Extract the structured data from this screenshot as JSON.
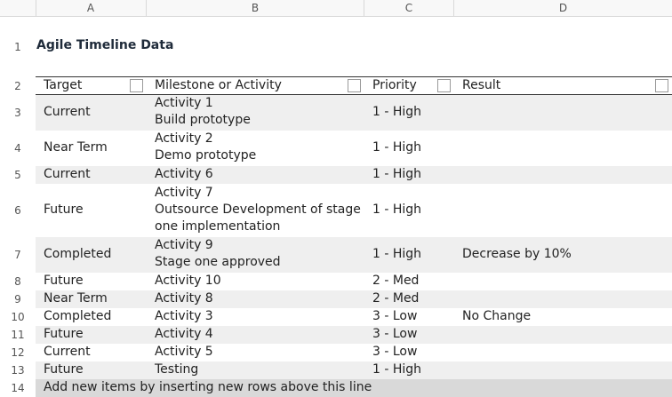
{
  "columns": [
    "A",
    "B",
    "C",
    "D"
  ],
  "title": "Agile Timeline Data",
  "headers": {
    "target": "Target",
    "milestone": "Milestone or Activity",
    "priority": "Priority",
    "result": "Result"
  },
  "rows": [
    {
      "num": "1"
    },
    {
      "num": "2"
    },
    {
      "num": "3",
      "target": "Current",
      "milestone": [
        "Activity 1",
        "Build prototype"
      ],
      "priority": "1 - High",
      "result": ""
    },
    {
      "num": "4",
      "target": "Near Term",
      "milestone": [
        "Activity 2",
        "Demo prototype"
      ],
      "priority": "1 - High",
      "result": ""
    },
    {
      "num": "5",
      "target": "Current",
      "milestone": [
        "Activity 6"
      ],
      "priority": "1 - High",
      "result": ""
    },
    {
      "num": "6",
      "target": "Future",
      "milestone": [
        "Activity 7",
        "Outsource Development of stage",
        "one implementation"
      ],
      "priority": "1 - High",
      "result": ""
    },
    {
      "num": "7",
      "target": "Completed",
      "milestone": [
        "Activity 9",
        "Stage one approved"
      ],
      "priority": "1 - High",
      "result": "Decrease by 10%"
    },
    {
      "num": "8",
      "target": "Future",
      "milestone": [
        "Activity 10"
      ],
      "priority": "2 - Med",
      "result": ""
    },
    {
      "num": "9",
      "target": "Near Term",
      "milestone": [
        "Activity 8"
      ],
      "priority": "2 - Med",
      "result": ""
    },
    {
      "num": "10",
      "target": "Completed",
      "milestone": [
        "Activity 3"
      ],
      "priority": "3 - Low",
      "result": "No Change"
    },
    {
      "num": "11",
      "target": "Future",
      "milestone": [
        "Activity 4"
      ],
      "priority": "3 - Low",
      "result": ""
    },
    {
      "num": "12",
      "target": "Current",
      "milestone": [
        "Activity 5"
      ],
      "priority": "3 - Low",
      "result": ""
    },
    {
      "num": "13",
      "target": "Future",
      "milestone": [
        "Testing"
      ],
      "priority": "1 - High",
      "result": ""
    },
    {
      "num": "14"
    }
  ],
  "footer_text": "Add new items by inserting new rows above this line",
  "colors": {
    "band": "#efefef",
    "footer": "#d9d9d9",
    "header_line": "#333333"
  }
}
